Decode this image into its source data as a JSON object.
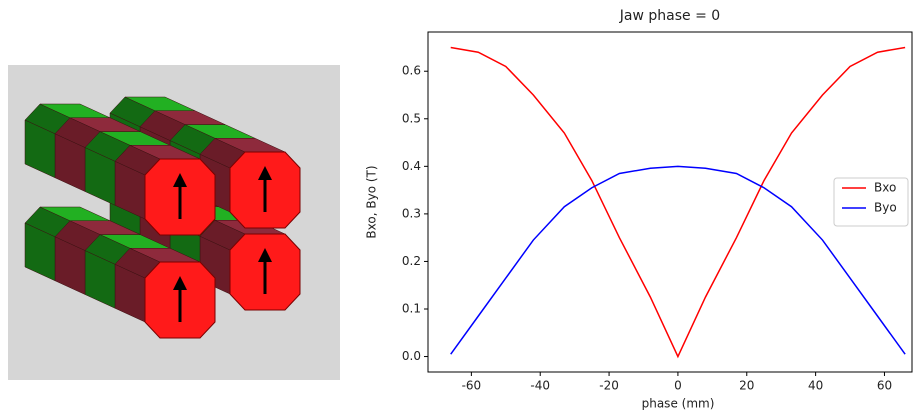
{
  "chart_data": {
    "type": "line",
    "title": "Jaw phase = 0",
    "xlabel": "phase (mm)",
    "ylabel": "Bxo, Byo (T)",
    "x": [
      -66,
      -58,
      -50,
      -42,
      -33,
      -25,
      -17,
      -8,
      0,
      8,
      17,
      25,
      33,
      42,
      50,
      58,
      66
    ],
    "series": [
      {
        "name": "Bxo",
        "color": "#ff0000",
        "values": [
          0.65,
          0.64,
          0.61,
          0.55,
          0.47,
          0.37,
          0.25,
          0.125,
          0.0,
          0.125,
          0.25,
          0.37,
          0.47,
          0.55,
          0.61,
          0.64,
          0.65
        ]
      },
      {
        "name": "Byo",
        "color": "#0000ff",
        "values": [
          0.005,
          0.085,
          0.165,
          0.245,
          0.315,
          0.355,
          0.385,
          0.396,
          0.4,
          0.396,
          0.385,
          0.355,
          0.315,
          0.245,
          0.165,
          0.085,
          0.005
        ]
      }
    ],
    "xlim": [
      -72.6,
      68
    ],
    "xticks": [
      -60,
      -40,
      -20,
      0,
      20,
      40,
      60
    ],
    "ylim": [
      -0.0325,
      0.6825
    ],
    "yticks": [
      {
        "value": 0,
        "label": "0.0"
      },
      0.1,
      0.2,
      0.3,
      0.4,
      0.5,
      0.6
    ],
    "legend": "right",
    "grid": false
  }
}
